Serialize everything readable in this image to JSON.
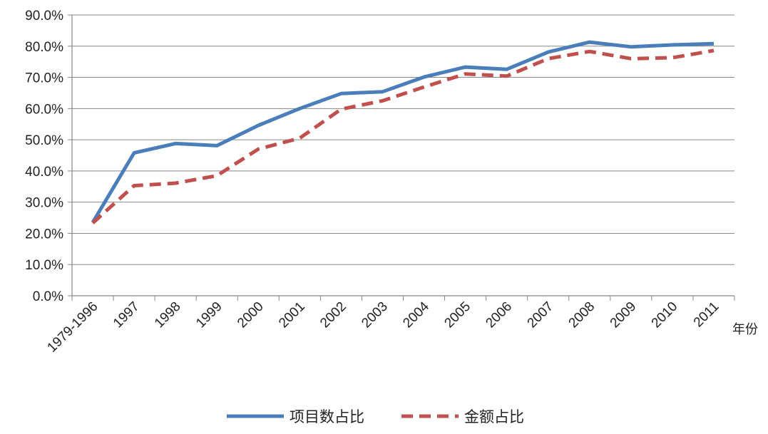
{
  "chart_data": {
    "type": "line",
    "title": "",
    "xlabel": "年份",
    "ylabel": "",
    "categories": [
      "1979-1996",
      "1997",
      "1998",
      "1999",
      "2000",
      "2001",
      "2002",
      "2003",
      "2004",
      "2005",
      "2006",
      "2007",
      "2008",
      "2009",
      "2010",
      "2011"
    ],
    "ylim": [
      0,
      90
    ],
    "yticks": [
      0,
      10,
      20,
      30,
      40,
      50,
      60,
      70,
      80,
      90
    ],
    "ytick_labels": [
      "0.0%",
      "10.0%",
      "20.0%",
      "30.0%",
      "40.0%",
      "50.0%",
      "60.0%",
      "70.0%",
      "80.0%",
      "90.0%"
    ],
    "grid": true,
    "legend_position": "bottom",
    "series": [
      {
        "name": "项目数占比",
        "color": "#4a7ebb",
        "style": "solid",
        "values": [
          23.5,
          45.8,
          48.8,
          48.1,
          54.6,
          60.0,
          64.8,
          65.4,
          70.1,
          73.3,
          72.6,
          78.1,
          81.3,
          79.8,
          80.4,
          80.8
        ]
      },
      {
        "name": "金额占比",
        "color": "#c0504d",
        "style": "dashed",
        "values": [
          23.3,
          35.3,
          36.1,
          38.5,
          47.0,
          50.5,
          59.8,
          62.5,
          66.9,
          71.1,
          70.4,
          76.0,
          78.3,
          76.0,
          76.3,
          78.6
        ]
      }
    ]
  }
}
